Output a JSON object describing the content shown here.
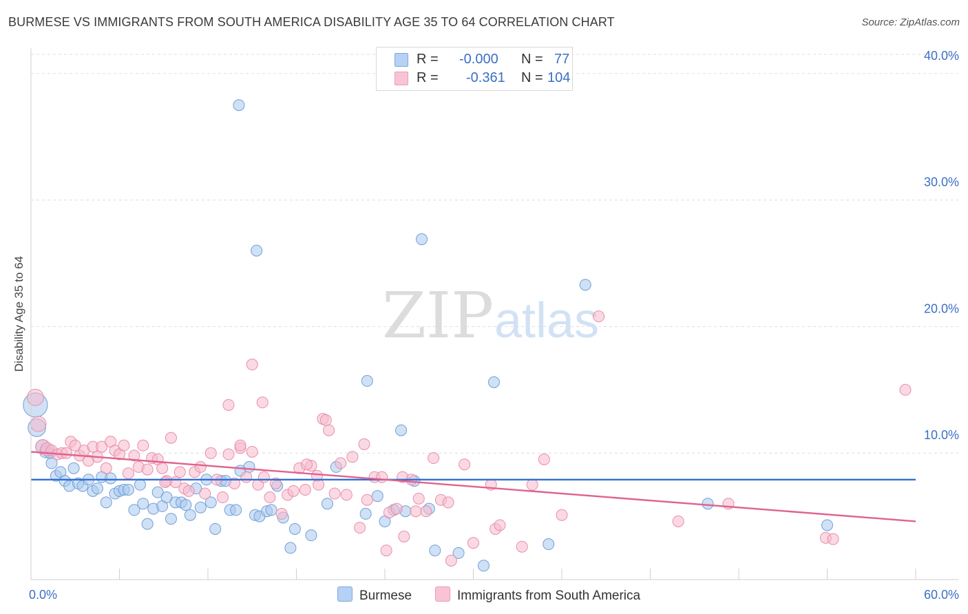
{
  "title": "BURMESE VS IMMIGRANTS FROM SOUTH AMERICA DISABILITY AGE 35 TO 64 CORRELATION CHART",
  "source": "Source: ZipAtlas.com",
  "watermark": {
    "zip": "ZIP",
    "atlas": "atlas"
  },
  "legend": {
    "r_label": "R =",
    "n_label": "N =",
    "series": [
      {
        "r_value": "-0.000",
        "n_value": "77"
      },
      {
        "r_value": "-0.361",
        "n_value": "104"
      }
    ]
  },
  "bottom_legend": [
    "Burmese",
    "Immigrants from South America"
  ],
  "chart_data": {
    "type": "scatter",
    "title": "BURMESE VS IMMIGRANTS FROM SOUTH AMERICA DISABILITY AGE 35 TO 64 CORRELATION CHART",
    "xlabel": "",
    "ylabel": "Disability Age 35 to 64",
    "xlim": [
      0,
      60
    ],
    "ylim": [
      0,
      42
    ],
    "x_tick_labels": [
      "0.0%",
      "60.0%"
    ],
    "y_ticks": [
      10,
      20,
      30,
      40
    ],
    "y_tick_labels": [
      "10.0%",
      "20.0%",
      "30.0%",
      "40.0%"
    ],
    "grid": true,
    "series": [
      {
        "name": "Burmese",
        "color": "#a9c8ef",
        "edge": "#6f9fd8",
        "line_color": "#2f6fd0",
        "trend": {
          "x": [
            0,
            60
          ],
          "y": [
            7.9,
            7.9
          ]
        },
        "points": [
          [
            0.3,
            13.8,
            2.2
          ],
          [
            0.4,
            12.0,
            1.6
          ],
          [
            0.8,
            10.5,
            1.3
          ],
          [
            1.0,
            10.1,
            1.1
          ],
          [
            1.3,
            10.0,
            1
          ],
          [
            1.4,
            9.2,
            1
          ],
          [
            1.7,
            8.2,
            1
          ],
          [
            2.0,
            8.5,
            1
          ],
          [
            2.3,
            7.8,
            1
          ],
          [
            2.6,
            7.4,
            1
          ],
          [
            2.9,
            8.8,
            1
          ],
          [
            3.2,
            7.6,
            1
          ],
          [
            3.5,
            7.4,
            1
          ],
          [
            3.9,
            7.9,
            1
          ],
          [
            4.2,
            7.0,
            1
          ],
          [
            4.5,
            7.2,
            1
          ],
          [
            4.8,
            8.1,
            1
          ],
          [
            5.1,
            6.1,
            1
          ],
          [
            5.4,
            8.0,
            1
          ],
          [
            5.7,
            6.8,
            1
          ],
          [
            6.0,
            7.0,
            1
          ],
          [
            6.3,
            7.1,
            1
          ],
          [
            6.6,
            7.1,
            1
          ],
          [
            7.0,
            5.5,
            1
          ],
          [
            7.4,
            7.5,
            1
          ],
          [
            7.6,
            6.0,
            1
          ],
          [
            7.9,
            4.4,
            1
          ],
          [
            8.3,
            5.6,
            1
          ],
          [
            8.6,
            6.9,
            1
          ],
          [
            8.9,
            5.8,
            1
          ],
          [
            9.2,
            6.5,
            1
          ],
          [
            9.5,
            4.8,
            1
          ],
          [
            9.8,
            6.1,
            1
          ],
          [
            10.2,
            6.1,
            1
          ],
          [
            10.5,
            5.9,
            1
          ],
          [
            10.8,
            5.1,
            1
          ],
          [
            11.2,
            7.2,
            1
          ],
          [
            11.5,
            5.7,
            1
          ],
          [
            11.9,
            7.9,
            1
          ],
          [
            12.2,
            6.1,
            1
          ],
          [
            12.5,
            4.0,
            1
          ],
          [
            12.9,
            7.8,
            1
          ],
          [
            13.2,
            7.8,
            1
          ],
          [
            13.5,
            5.5,
            1
          ],
          [
            13.9,
            5.5,
            1
          ],
          [
            14.2,
            8.6,
            1
          ],
          [
            14.8,
            8.9,
            1
          ],
          [
            15.2,
            5.1,
            1
          ],
          [
            15.5,
            5.0,
            1
          ],
          [
            16.0,
            5.4,
            1
          ],
          [
            16.3,
            5.5,
            1
          ],
          [
            16.7,
            7.4,
            1
          ],
          [
            17.1,
            4.9,
            1
          ],
          [
            17.6,
            2.5,
            1
          ],
          [
            17.9,
            4.0,
            1
          ],
          [
            19.0,
            3.5,
            1
          ],
          [
            20.1,
            6.0,
            1
          ],
          [
            20.7,
            8.9,
            1
          ],
          [
            22.7,
            5.2,
            1
          ],
          [
            23.5,
            6.6,
            1
          ],
          [
            24.0,
            4.6,
            1
          ],
          [
            24.6,
            5.5,
            1
          ],
          [
            25.4,
            5.4,
            1
          ],
          [
            25.1,
            11.8,
            1
          ],
          [
            26.0,
            7.8,
            1
          ],
          [
            27.0,
            5.6,
            1
          ],
          [
            27.4,
            2.3,
            1
          ],
          [
            29.0,
            2.1,
            1
          ],
          [
            30.7,
            1.1,
            1
          ],
          [
            14.1,
            37.5,
            1
          ],
          [
            15.3,
            26.0,
            1
          ],
          [
            26.5,
            26.9,
            1
          ],
          [
            37.6,
            23.3,
            1
          ],
          [
            22.8,
            15.7,
            1
          ],
          [
            31.4,
            15.6,
            1
          ],
          [
            35.1,
            2.8,
            1
          ],
          [
            45.9,
            6.0,
            1
          ],
          [
            54.0,
            4.3,
            1
          ]
        ]
      },
      {
        "name": "Immigrants from South America",
        "color": "#f6b9cc",
        "edge": "#e98daa",
        "line_color": "#e0628d",
        "trend": {
          "x": [
            0,
            60
          ],
          "y": [
            10.1,
            4.6
          ]
        },
        "points": [
          [
            0.3,
            14.4,
            1.5
          ],
          [
            0.5,
            12.3,
            1.4
          ],
          [
            0.8,
            10.5,
            1.3
          ],
          [
            1.1,
            10.3,
            1.2
          ],
          [
            1.4,
            10.2,
            1
          ],
          [
            1.8,
            9.9,
            1
          ],
          [
            2.1,
            10.0,
            1
          ],
          [
            2.4,
            10.0,
            1
          ],
          [
            2.7,
            10.9,
            1
          ],
          [
            3.0,
            10.6,
            1
          ],
          [
            3.3,
            9.8,
            1
          ],
          [
            3.6,
            10.2,
            1
          ],
          [
            3.9,
            9.4,
            1
          ],
          [
            4.2,
            10.5,
            1
          ],
          [
            4.5,
            9.7,
            1
          ],
          [
            4.8,
            10.5,
            1
          ],
          [
            5.1,
            8.8,
            1
          ],
          [
            5.4,
            10.9,
            1
          ],
          [
            5.7,
            10.2,
            1
          ],
          [
            6.0,
            9.9,
            1
          ],
          [
            6.3,
            10.6,
            1
          ],
          [
            6.6,
            8.4,
            1
          ],
          [
            7.0,
            9.8,
            1
          ],
          [
            7.3,
            8.9,
            1
          ],
          [
            7.6,
            10.6,
            1
          ],
          [
            7.9,
            8.7,
            1
          ],
          [
            8.2,
            9.6,
            1
          ],
          [
            8.6,
            9.5,
            1
          ],
          [
            8.9,
            8.8,
            1
          ],
          [
            9.2,
            7.8,
            1
          ],
          [
            9.5,
            11.2,
            1
          ],
          [
            9.8,
            7.7,
            1
          ],
          [
            10.1,
            8.5,
            1
          ],
          [
            10.4,
            7.2,
            1
          ],
          [
            10.7,
            7.0,
            1
          ],
          [
            11.1,
            8.5,
            1
          ],
          [
            11.5,
            8.9,
            1
          ],
          [
            11.8,
            6.8,
            1
          ],
          [
            12.2,
            10.0,
            1
          ],
          [
            12.6,
            7.9,
            1
          ],
          [
            13.0,
            6.5,
            1
          ],
          [
            13.4,
            9.9,
            1
          ],
          [
            13.8,
            7.6,
            1
          ],
          [
            14.2,
            10.4,
            1
          ],
          [
            14.6,
            8.1,
            1
          ],
          [
            15.0,
            10.1,
            1
          ],
          [
            15.4,
            7.5,
            1
          ],
          [
            15.8,
            8.1,
            1
          ],
          [
            16.2,
            6.5,
            1
          ],
          [
            16.6,
            7.6,
            1
          ],
          [
            17.0,
            5.2,
            1
          ],
          [
            17.4,
            6.7,
            1
          ],
          [
            17.8,
            7.0,
            1
          ],
          [
            18.2,
            8.8,
            1
          ],
          [
            18.6,
            7.1,
            1
          ],
          [
            19.0,
            9.0,
            1
          ],
          [
            19.4,
            8.2,
            1
          ],
          [
            19.8,
            12.7,
            1
          ],
          [
            20.2,
            11.8,
            1
          ],
          [
            20.6,
            6.8,
            1
          ],
          [
            21.0,
            9.2,
            1
          ],
          [
            21.4,
            6.7,
            1
          ],
          [
            21.8,
            9.7,
            1
          ],
          [
            22.3,
            4.1,
            1
          ],
          [
            22.8,
            6.3,
            1
          ],
          [
            23.3,
            8.1,
            1
          ],
          [
            23.8,
            8.1,
            1
          ],
          [
            24.3,
            5.3,
            1
          ],
          [
            24.8,
            5.6,
            1
          ],
          [
            25.3,
            3.4,
            1
          ],
          [
            25.8,
            7.9,
            1
          ],
          [
            26.3,
            6.4,
            1
          ],
          [
            26.8,
            5.4,
            1
          ],
          [
            27.3,
            9.6,
            1
          ],
          [
            27.8,
            6.3,
            1
          ],
          [
            28.3,
            6.1,
            1
          ],
          [
            28.5,
            1.5,
            1
          ],
          [
            30.0,
            2.9,
            1
          ],
          [
            31.5,
            4.0,
            1
          ],
          [
            33.3,
            2.6,
            1
          ],
          [
            34.0,
            7.5,
            1
          ],
          [
            15.0,
            17.0,
            1
          ],
          [
            13.4,
            13.8,
            1
          ],
          [
            15.7,
            14.0,
            1
          ],
          [
            18.7,
            9.1,
            1
          ],
          [
            14.2,
            10.6,
            1
          ],
          [
            20.0,
            12.6,
            1
          ],
          [
            22.6,
            10.7,
            1
          ],
          [
            24.1,
            2.3,
            1
          ],
          [
            25.2,
            8.1,
            1
          ],
          [
            26.1,
            5.4,
            1
          ],
          [
            29.4,
            9.1,
            1
          ],
          [
            31.8,
            4.3,
            1
          ],
          [
            34.8,
            9.5,
            1
          ],
          [
            36.0,
            5.1,
            1
          ],
          [
            38.5,
            20.8,
            1
          ],
          [
            43.9,
            4.6,
            1
          ],
          [
            47.3,
            6.0,
            1
          ],
          [
            53.9,
            3.3,
            1
          ],
          [
            54.4,
            3.2,
            1
          ],
          [
            59.3,
            15.0,
            1
          ],
          [
            31.2,
            7.5,
            1
          ],
          [
            19.5,
            7.5,
            1
          ],
          [
            9.1,
            7.7,
            1
          ]
        ]
      }
    ]
  }
}
